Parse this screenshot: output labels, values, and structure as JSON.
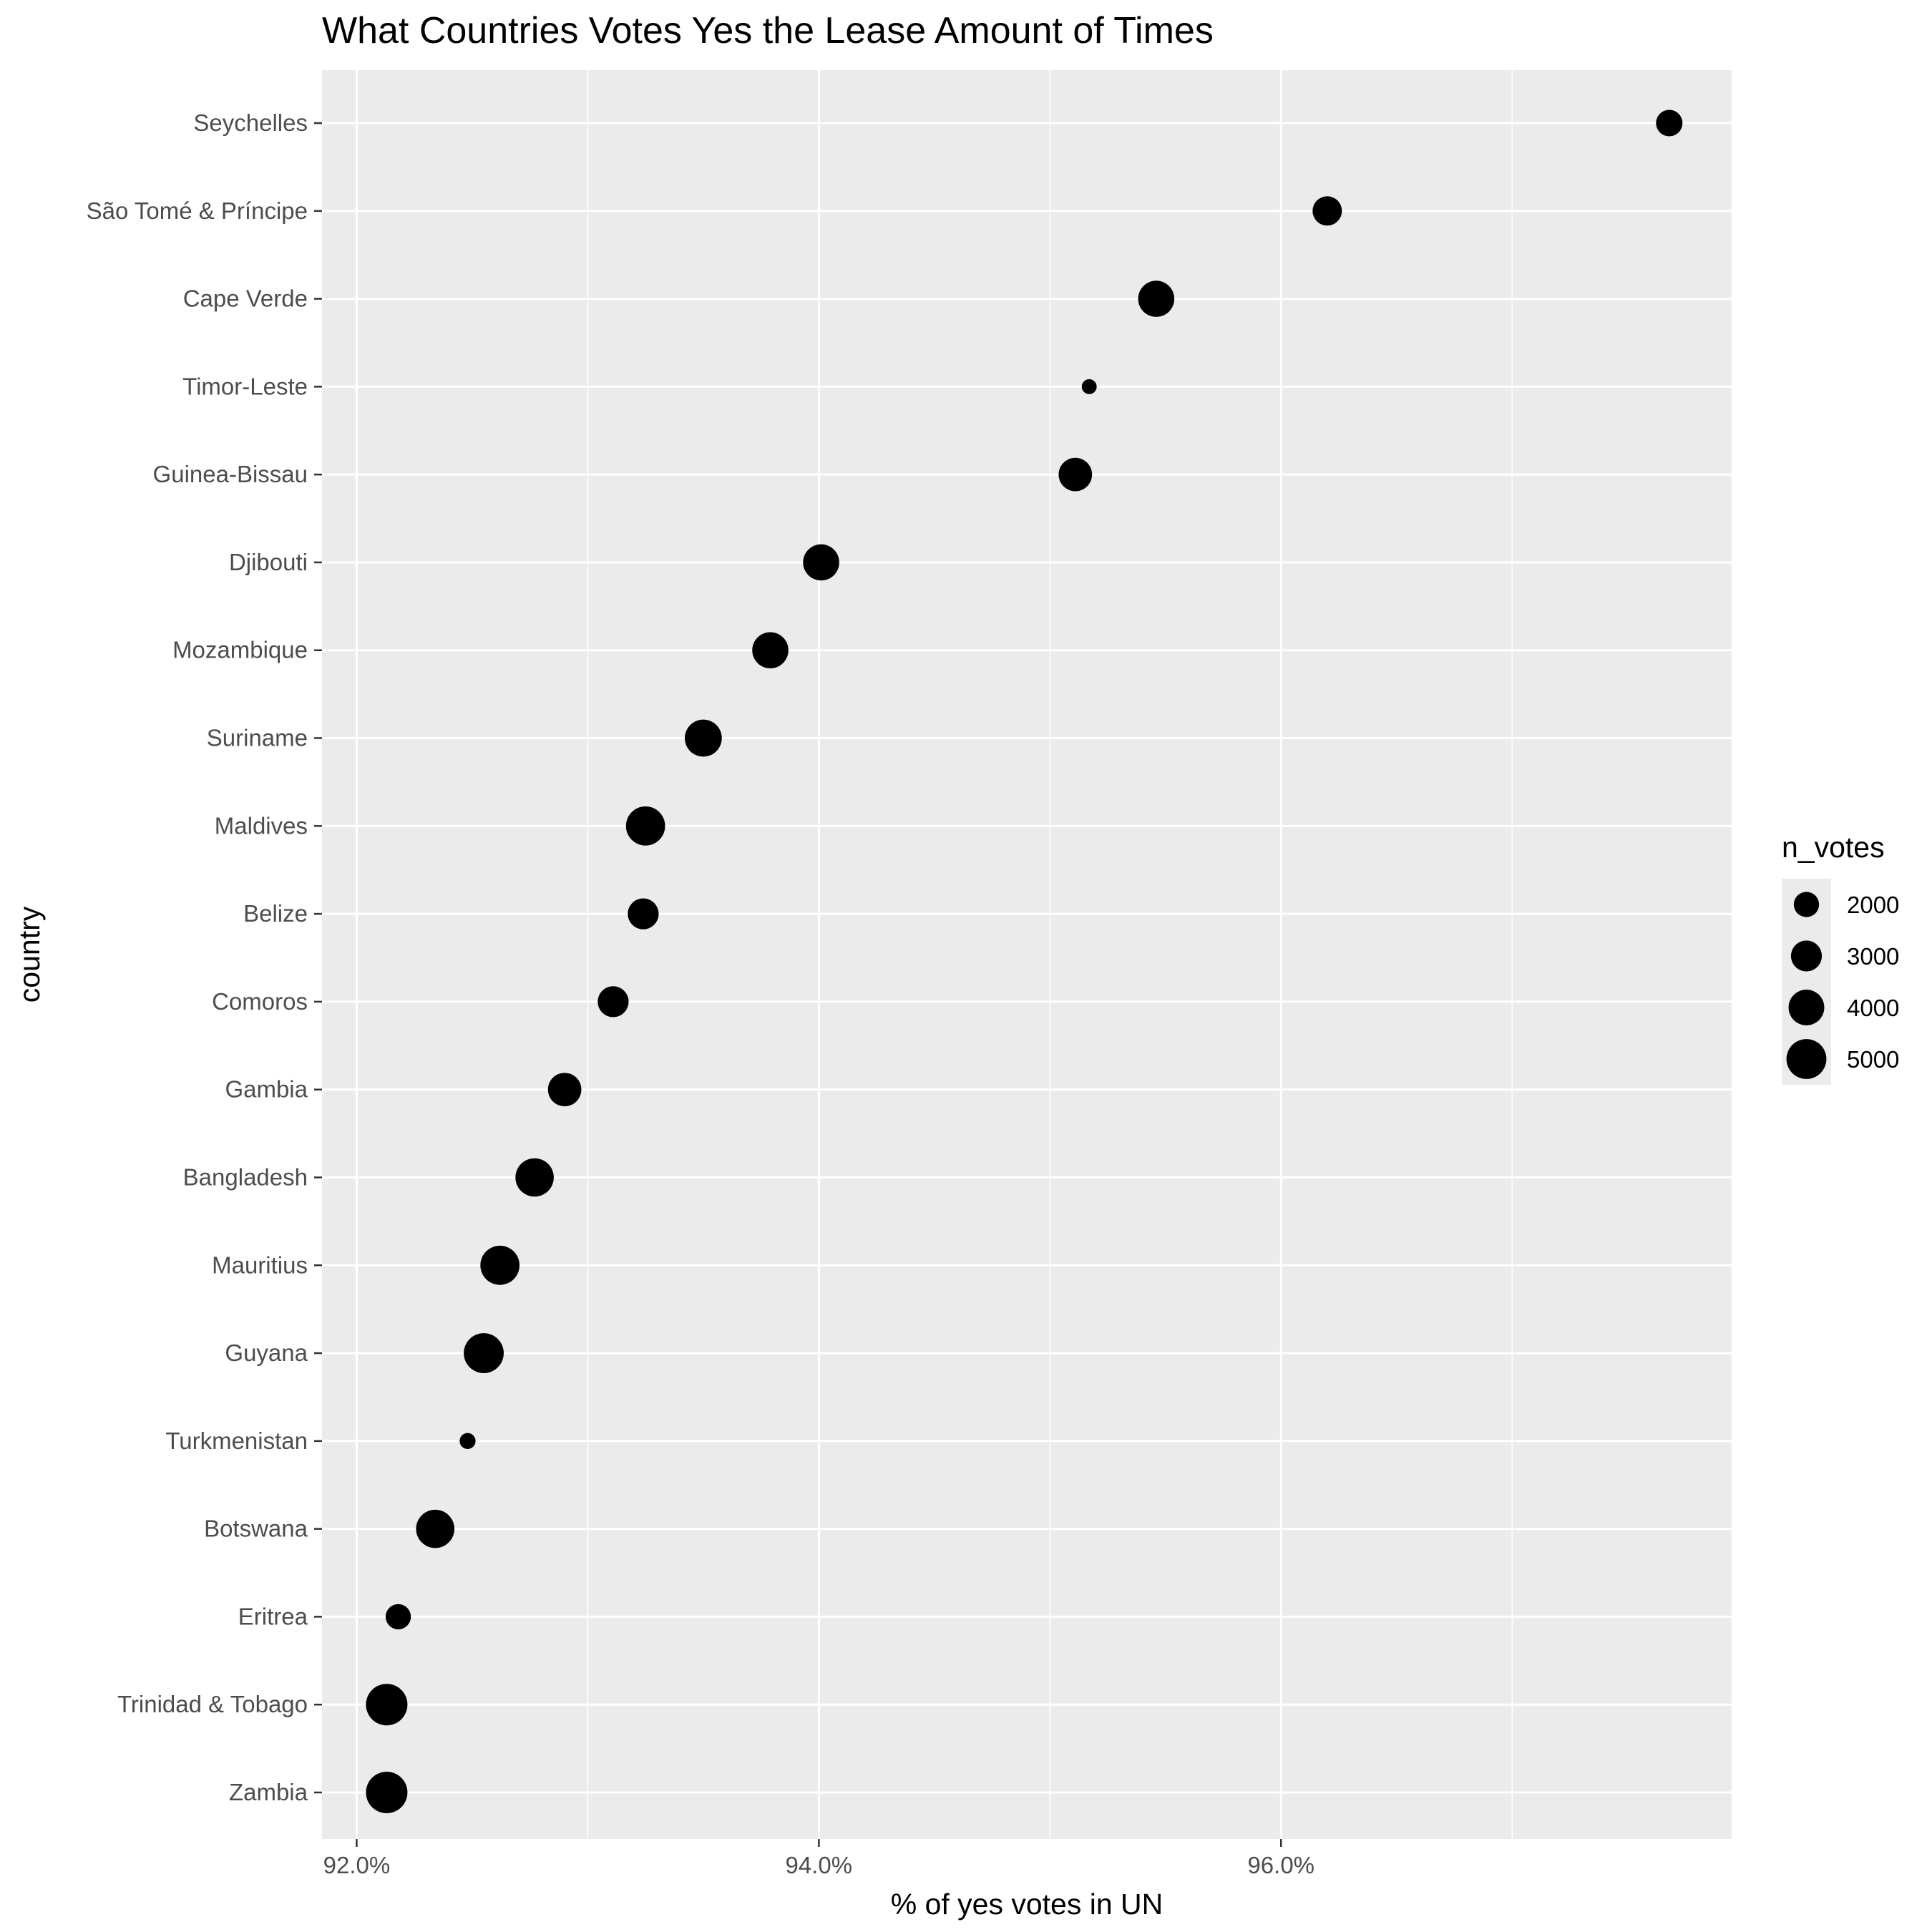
{
  "chart_data": {
    "type": "scatter",
    "title": "What Countries Votes Yes the Lease Amount of Times",
    "xlabel": "% of yes votes in UN",
    "ylabel": "country",
    "xlim": [
      91.85,
      97.95
    ],
    "x_ticks": [
      92.0,
      94.0,
      96.0
    ],
    "x_tick_labels": [
      "92.0%",
      "94.0%",
      "96.0%"
    ],
    "grid": true,
    "legend": {
      "title": "n_votes",
      "position": "right",
      "values": [
        2000,
        3000,
        4000,
        5000
      ],
      "labels": [
        "2000",
        "3000",
        "4000",
        "5000"
      ]
    },
    "categories": [
      "Seychelles",
      "São Tomé & Príncipe",
      "Cape Verde",
      "Timor-Leste",
      "Guinea-Bissau",
      "Djibouti",
      "Mozambique",
      "Suriname",
      "Maldives",
      "Belize",
      "Comoros",
      "Gambia",
      "Bangladesh",
      "Mauritius",
      "Guyana",
      "Turkmenistan",
      "Botswana",
      "Eritrea",
      "Trinidad & Tobago",
      "Zambia"
    ],
    "series": [
      {
        "x": [
          97.68,
          96.2,
          95.46,
          95.17,
          95.11,
          94.01,
          93.79,
          93.5,
          93.25,
          93.24,
          93.11,
          92.9,
          92.77,
          92.62,
          92.55,
          92.48,
          92.34,
          92.18,
          92.13,
          92.13
        ],
        "sizes": [
          2200,
          2700,
          4100,
          700,
          3500,
          4100,
          4100,
          4300,
          4800,
          3000,
          3000,
          3500,
          4600,
          4800,
          5000,
          800,
          4600,
          2000,
          5400,
          5400
        ]
      }
    ],
    "colors": {
      "panel": "#ebebeb",
      "grid": "#ffffff",
      "point": "#000000",
      "tick": "#333333"
    }
  }
}
